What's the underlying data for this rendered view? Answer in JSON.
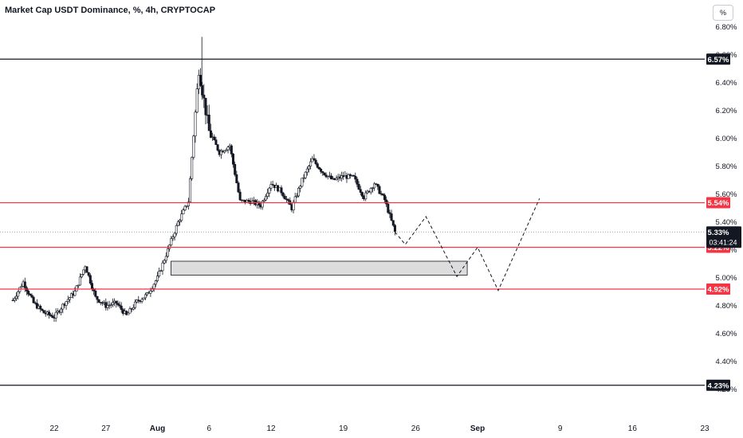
{
  "header": {
    "title": "Market Cap USDT Dominance, %, 4h, CRYPTOCAP",
    "scale_button": "%"
  },
  "colors": {
    "candle": "#131722",
    "black_line": "#131722",
    "red_line": "#f23645",
    "zone_fill": "#dcdcdc",
    "zone_stroke": "#131722",
    "projection": "#131722",
    "axis_text": "#131722"
  },
  "chart_data": {
    "type": "candlestick",
    "title": "Market Cap USDT Dominance, %, 4h, CRYPTOCAP",
    "xlabel": "",
    "ylabel": "",
    "ylim": [
      4.15,
      6.88
    ],
    "x_range_days": [
      "2024-07-18",
      "2024-09-21"
    ],
    "y_ticks": [
      "6.80%",
      "6.60%",
      "6.40%",
      "6.20%",
      "6.00%",
      "5.80%",
      "5.60%",
      "5.40%",
      "5.20%",
      "5.00%",
      "4.80%",
      "4.60%",
      "4.40%",
      "4.20%"
    ],
    "y_tick_values": [
      6.8,
      6.6,
      6.4,
      6.2,
      6.0,
      5.8,
      5.6,
      5.4,
      5.2,
      5.0,
      4.8,
      4.6,
      4.4,
      4.2
    ],
    "x_ticks": [
      {
        "label": "22",
        "date": "2024-07-22"
      },
      {
        "label": "27",
        "date": "2024-07-27"
      },
      {
        "label": "Aug",
        "date": "2024-08-01"
      },
      {
        "label": "6",
        "date": "2024-08-06"
      },
      {
        "label": "12",
        "date": "2024-08-12"
      },
      {
        "label": "19",
        "date": "2024-08-19"
      },
      {
        "label": "26",
        "date": "2024-08-26"
      },
      {
        "label": "Sep",
        "date": "2024-09-01"
      },
      {
        "label": "9",
        "date": "2024-09-09"
      },
      {
        "label": "16",
        "date": "2024-09-16"
      },
      {
        "label": "23",
        "date": "2024-09-23"
      }
    ],
    "close_path": [
      {
        "date": "2024-07-18",
        "value": 4.84
      },
      {
        "date": "2024-07-19",
        "value": 4.97
      },
      {
        "date": "2024-07-20",
        "value": 4.82
      },
      {
        "date": "2024-07-21",
        "value": 4.75
      },
      {
        "date": "2024-07-22",
        "value": 4.72
      },
      {
        "date": "2024-07-23",
        "value": 4.82
      },
      {
        "date": "2024-07-24",
        "value": 4.9
      },
      {
        "date": "2024-07-25",
        "value": 5.09
      },
      {
        "date": "2024-07-26",
        "value": 4.86
      },
      {
        "date": "2024-07-27",
        "value": 4.8
      },
      {
        "date": "2024-07-28",
        "value": 4.82
      },
      {
        "date": "2024-07-29",
        "value": 4.73
      },
      {
        "date": "2024-07-30",
        "value": 4.83
      },
      {
        "date": "2024-07-31",
        "value": 4.88
      },
      {
        "date": "2024-08-01",
        "value": 5.0
      },
      {
        "date": "2024-08-02",
        "value": 5.2
      },
      {
        "date": "2024-08-03",
        "value": 5.4
      },
      {
        "date": "2024-08-04",
        "value": 5.55
      },
      {
        "date": "2024-08-05",
        "value": 6.5
      },
      {
        "date": "2024-08-06",
        "value": 6.05
      },
      {
        "date": "2024-08-07",
        "value": 5.9
      },
      {
        "date": "2024-08-08",
        "value": 5.95
      },
      {
        "date": "2024-08-09",
        "value": 5.55
      },
      {
        "date": "2024-08-10",
        "value": 5.55
      },
      {
        "date": "2024-08-11",
        "value": 5.52
      },
      {
        "date": "2024-08-12",
        "value": 5.68
      },
      {
        "date": "2024-08-13",
        "value": 5.62
      },
      {
        "date": "2024-08-14",
        "value": 5.5
      },
      {
        "date": "2024-08-15",
        "value": 5.7
      },
      {
        "date": "2024-08-16",
        "value": 5.85
      },
      {
        "date": "2024-08-17",
        "value": 5.76
      },
      {
        "date": "2024-08-18",
        "value": 5.7
      },
      {
        "date": "2024-08-19",
        "value": 5.73
      },
      {
        "date": "2024-08-20",
        "value": 5.72
      },
      {
        "date": "2024-08-21",
        "value": 5.58
      },
      {
        "date": "2024-08-22",
        "value": 5.68
      },
      {
        "date": "2024-08-23",
        "value": 5.56
      },
      {
        "date": "2024-08-24",
        "value": 5.33
      }
    ],
    "current_value": 5.33,
    "current_label": "5.33%",
    "countdown": "03:41:24",
    "horizontal_lines": [
      {
        "value": 6.57,
        "label": "6.57%",
        "color": "black"
      },
      {
        "value": 5.54,
        "label": "5.54%",
        "color": "red"
      },
      {
        "value": 5.22,
        "label": "5.22%",
        "color": "red"
      },
      {
        "value": 4.92,
        "label": "4.92%",
        "color": "red"
      },
      {
        "value": 4.23,
        "label": "4.23%",
        "color": "black"
      }
    ],
    "zone": {
      "start": "2024-08-02",
      "end": "2024-08-31",
      "low": 5.02,
      "high": 5.12
    },
    "projection": [
      {
        "date": "2024-08-25",
        "value": 5.24
      },
      {
        "date": "2024-08-27",
        "value": 5.44
      },
      {
        "date": "2024-08-30",
        "value": 5.01
      },
      {
        "date": "2024-09-01",
        "value": 5.22
      },
      {
        "date": "2024-09-03",
        "value": 4.91
      },
      {
        "date": "2024-09-07",
        "value": 5.57
      }
    ]
  }
}
